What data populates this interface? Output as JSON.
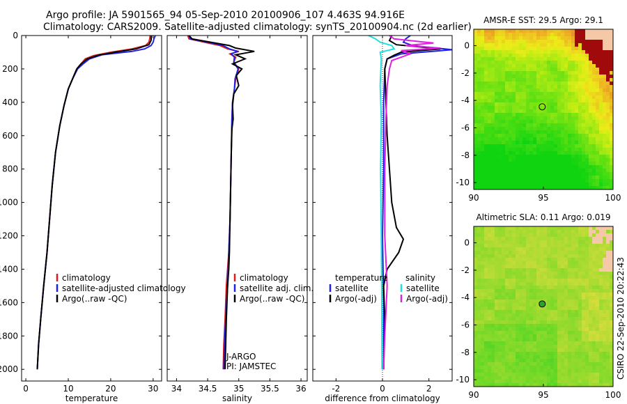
{
  "title": {
    "line1": "Argo profile: JA 5901565_94 05-Sep-2010 20100906_107 4.463S 94.916E",
    "line2": "Climatology: CARS2009. Satellite-adjusted climatology: synTS_20100904.nc (2d earlier)"
  },
  "credit": "CSIRO 22-Sep-2010 20:22:43",
  "colors": {
    "climatology": "#e0191b",
    "satellite": "#2020e0",
    "argo": "#000000",
    "sal_satellite": "#22e0e0",
    "sal_argo": "#e020e0"
  },
  "chart_data": [
    {
      "type": "line",
      "name": "temperature",
      "xlabel": "temperature",
      "ylabel": "",
      "xlim": [
        -1,
        32
      ],
      "ylim": [
        0,
        2070
      ],
      "xticks": [
        "0",
        "10",
        "20",
        "30"
      ],
      "xtick_values": [
        0,
        10,
        20,
        30
      ],
      "yticks": [
        "0",
        "200",
        "400",
        "600",
        "800",
        "1000",
        "1200",
        "1400",
        "1600",
        "1800",
        "2000"
      ],
      "ytick_values": [
        0,
        200,
        400,
        600,
        800,
        1000,
        1200,
        1400,
        1600,
        1800,
        2000
      ],
      "legend": [
        "climatology",
        "satellite-adjusted climatology",
        "Argo(..raw -QC)"
      ],
      "series": [
        {
          "name": "climatology",
          "points": [
            [
              29.3,
              0
            ],
            [
              29.2,
              20
            ],
            [
              29.0,
              40
            ],
            [
              28.2,
              60
            ],
            [
              25,
              80
            ],
            [
              20,
              100
            ],
            [
              16,
              120
            ],
            [
              14,
              140
            ],
            [
              13,
              170
            ],
            [
              12,
              200
            ],
            [
              11,
              260
            ],
            [
              10,
              320
            ],
            [
              9,
              420
            ],
            [
              8,
              540
            ],
            [
              7,
              700
            ],
            [
              6.2,
              900
            ],
            [
              5.6,
              1100
            ],
            [
              5,
              1300
            ],
            [
              4.2,
              1500
            ],
            [
              3.5,
              1700
            ],
            [
              3,
              1850
            ],
            [
              2.7,
              2000
            ]
          ]
        },
        {
          "name": "satellite",
          "points": [
            [
              30.5,
              0
            ],
            [
              30.2,
              20
            ],
            [
              30,
              40
            ],
            [
              29.5,
              60
            ],
            [
              28,
              80
            ],
            [
              25,
              95
            ],
            [
              18,
              115
            ],
            [
              15,
              140
            ],
            [
              13.5,
              170
            ],
            [
              12.2,
              200
            ],
            [
              11,
              260
            ],
            [
              10,
              320
            ],
            [
              9,
              420
            ],
            [
              8,
              540
            ],
            [
              7,
              700
            ],
            [
              6.2,
              900
            ],
            [
              5.6,
              1100
            ],
            [
              5,
              1300
            ],
            [
              4.2,
              1500
            ],
            [
              3.5,
              1700
            ],
            [
              3,
              1850
            ],
            [
              2.7,
              2000
            ]
          ]
        },
        {
          "name": "argo",
          "points": [
            [
              29.6,
              0
            ],
            [
              29.5,
              30
            ],
            [
              29,
              55
            ],
            [
              26,
              80
            ],
            [
              21,
              100
            ],
            [
              17,
              118
            ],
            [
              14.5,
              140
            ],
            [
              13,
              170
            ],
            [
              12,
              200
            ],
            [
              11,
              260
            ],
            [
              10,
              320
            ],
            [
              9,
              420
            ],
            [
              8,
              540
            ],
            [
              7,
              700
            ],
            [
              6.2,
              900
            ],
            [
              5.6,
              1100
            ],
            [
              5,
              1300
            ],
            [
              4.2,
              1500
            ],
            [
              3.5,
              1700
            ],
            [
              3,
              1850
            ],
            [
              2.7,
              2000
            ]
          ]
        }
      ]
    },
    {
      "type": "line",
      "name": "salinity",
      "xlabel": "salinity",
      "xlim": [
        33.85,
        36.1
      ],
      "ylim": [
        0,
        2070
      ],
      "xticks": [
        "34",
        "34.5",
        "35",
        "35.5",
        "36"
      ],
      "xtick_values": [
        34,
        34.5,
        35,
        35.5,
        36
      ],
      "legend": [
        "climatology",
        "satellite adj. clim.",
        "Argo(..raw -QC)"
      ],
      "annotations": [
        "J-ARGO",
        "PI: JAMSTEC"
      ],
      "series": [
        {
          "name": "climatology",
          "points": [
            [
              34.18,
              0
            ],
            [
              34.2,
              20
            ],
            [
              34.45,
              40
            ],
            [
              34.7,
              60
            ],
            [
              34.82,
              80
            ],
            [
              35.0,
              95
            ],
            [
              34.86,
              110
            ],
            [
              34.95,
              130
            ],
            [
              34.92,
              160
            ],
            [
              35.0,
              200
            ],
            [
              34.95,
              260
            ],
            [
              34.93,
              320
            ],
            [
              34.9,
              400
            ],
            [
              34.89,
              500
            ],
            [
              34.88,
              700
            ],
            [
              34.87,
              900
            ],
            [
              34.86,
              1100
            ],
            [
              34.84,
              1300
            ],
            [
              34.8,
              1500
            ],
            [
              34.78,
              1700
            ],
            [
              34.76,
              1850
            ],
            [
              34.75,
              2000
            ]
          ]
        },
        {
          "name": "satellite",
          "points": [
            [
              34.2,
              0
            ],
            [
              34.22,
              20
            ],
            [
              34.5,
              40
            ],
            [
              34.75,
              60
            ],
            [
              34.85,
              80
            ],
            [
              34.98,
              95
            ],
            [
              34.88,
              110
            ],
            [
              34.93,
              130
            ],
            [
              34.92,
              160
            ],
            [
              34.99,
              200
            ],
            [
              34.94,
              260
            ],
            [
              34.93,
              320
            ],
            [
              34.9,
              400
            ],
            [
              34.89,
              500
            ],
            [
              34.88,
              700
            ],
            [
              34.87,
              900
            ],
            [
              34.86,
              1100
            ],
            [
              34.84,
              1300
            ],
            [
              34.82,
              1500
            ],
            [
              34.79,
              1700
            ],
            [
              34.77,
              1850
            ],
            [
              34.76,
              2000
            ]
          ]
        },
        {
          "name": "argo",
          "points": [
            [
              34.2,
              0
            ],
            [
              34.25,
              20
            ],
            [
              34.55,
              40
            ],
            [
              34.85,
              60
            ],
            [
              34.95,
              75
            ],
            [
              35.25,
              95
            ],
            [
              34.95,
              115
            ],
            [
              35.1,
              140
            ],
            [
              34.9,
              170
            ],
            [
              35.05,
              200
            ],
            [
              34.96,
              240
            ],
            [
              35.0,
              300
            ],
            [
              34.92,
              350
            ],
            [
              34.9,
              420
            ],
            [
              34.91,
              500
            ],
            [
              34.89,
              560
            ],
            [
              34.88,
              700
            ],
            [
              34.87,
              900
            ],
            [
              34.86,
              1100
            ],
            [
              34.85,
              1300
            ],
            [
              34.84,
              1400
            ],
            [
              34.82,
              1500
            ],
            [
              34.8,
              1700
            ],
            [
              34.79,
              1850
            ],
            [
              34.78,
              2000
            ]
          ]
        }
      ]
    },
    {
      "type": "line",
      "name": "difference",
      "xlabel": "difference from climatology",
      "xlim": [
        -3.0,
        3.0
      ],
      "ylim": [
        0,
        2070
      ],
      "xticks": [
        "-2",
        "0",
        "2"
      ],
      "xtick_values": [
        -2,
        0,
        2
      ],
      "legend_left_title": "temperature",
      "legend_right_title": "salinity",
      "legend": [
        "satellite",
        "Argo(-adj)",
        "satellite",
        "Argo(-adj)"
      ],
      "series": [
        {
          "name": "temp_satellite",
          "points": [
            [
              1.2,
              0
            ],
            [
              1.0,
              20
            ],
            [
              0.9,
              40
            ],
            [
              1.3,
              60
            ],
            [
              3,
              85
            ],
            [
              0.8,
              110
            ],
            [
              0.2,
              140
            ],
            [
              0.1,
              200
            ],
            [
              0.05,
              400
            ],
            [
              0.05,
              800
            ],
            [
              0.0,
              1200
            ],
            [
              0.05,
              1600
            ],
            [
              0.05,
              2000
            ]
          ]
        },
        {
          "name": "temp_argo",
          "points": [
            [
              0.4,
              0
            ],
            [
              0.3,
              30
            ],
            [
              0.6,
              55
            ],
            [
              2.5,
              80
            ],
            [
              0.8,
              100
            ],
            [
              0.5,
              118
            ],
            [
              0.2,
              140
            ],
            [
              0.1,
              200
            ],
            [
              0.15,
              400
            ],
            [
              0.2,
              600
            ],
            [
              0.3,
              800
            ],
            [
              0.4,
              1000
            ],
            [
              0.6,
              1150
            ],
            [
              0.9,
              1220
            ],
            [
              0.7,
              1300
            ],
            [
              0.2,
              1400
            ],
            [
              0.05,
              1500
            ],
            [
              0.1,
              1700
            ],
            [
              0.05,
              2000
            ]
          ]
        },
        {
          "name": "sal_satellite",
          "points": [
            [
              -0.6,
              0
            ],
            [
              -0.3,
              20
            ],
            [
              -0.1,
              40
            ],
            [
              0.4,
              60
            ],
            [
              0.5,
              80
            ],
            [
              -0.1,
              100
            ],
            [
              -0.05,
              140
            ],
            [
              -0.1,
              300
            ],
            [
              -0.05,
              500
            ],
            [
              -0.08,
              800
            ],
            [
              -0.05,
              1200
            ],
            [
              -0.03,
              1600
            ],
            [
              -0.02,
              2000
            ]
          ]
        },
        {
          "name": "sal_argo",
          "points": [
            [
              0.3,
              0
            ],
            [
              0.5,
              20
            ],
            [
              1.5,
              35
            ],
            [
              2.2,
              45
            ],
            [
              1.0,
              60
            ],
            [
              2.5,
              75
            ],
            [
              0.8,
              90
            ],
            [
              1.2,
              110
            ],
            [
              0.4,
              150
            ],
            [
              0.3,
              200
            ],
            [
              0.2,
              300
            ],
            [
              0.15,
              500
            ],
            [
              0.1,
              800
            ],
            [
              0.1,
              1200
            ],
            [
              0.2,
              1500
            ],
            [
              0.1,
              1800
            ],
            [
              0.05,
              2000
            ]
          ]
        }
      ]
    },
    {
      "type": "heatmap",
      "name": "sst_map",
      "title": "AMSR-E SST: 29.5 Argo: 29.1",
      "xlim": [
        90,
        100
      ],
      "ylim": [
        -10.5,
        1.2
      ],
      "xticks": [
        "90",
        "95",
        "100"
      ],
      "xtick_values": [
        90,
        95,
        100
      ],
      "yticks": [
        "0",
        "-2",
        "-4",
        "-6",
        "-8",
        "-10"
      ],
      "ytick_values": [
        0,
        -2,
        -4,
        -6,
        -8,
        -10
      ],
      "argo_position": [
        94.916,
        -4.463
      ]
    },
    {
      "type": "heatmap",
      "name": "sla_map",
      "title": "Altimetric SLA: 0.11 Argo: 0.019",
      "xlim": [
        90,
        100
      ],
      "ylim": [
        -10.5,
        1.2
      ],
      "xticks": [
        "90",
        "95",
        "100"
      ],
      "xtick_values": [
        90,
        95,
        100
      ],
      "yticks": [
        "0",
        "-2",
        "-4",
        "-6",
        "-8",
        "-10"
      ],
      "ytick_values": [
        0,
        -2,
        -4,
        -6,
        -8,
        -10
      ],
      "argo_position": [
        94.916,
        -4.463
      ]
    }
  ]
}
